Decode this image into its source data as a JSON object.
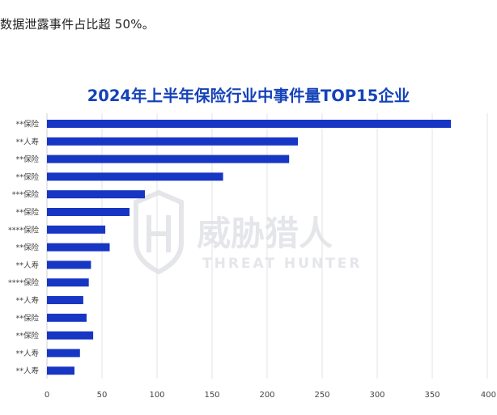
{
  "intro_text": "数据泄露事件占比超 50%。",
  "watermark": {
    "cn": "威胁猎人",
    "en": "THREAT HUNTER"
  },
  "colors": {
    "bar": "#1736c4",
    "title": "#1442b8",
    "grid": "#e3e3e3",
    "watermark": "#e4e6ea"
  },
  "chart_data": {
    "type": "bar",
    "orientation": "horizontal",
    "title": "2024年上半年保险行业中事件量TOP15企业",
    "xlabel": "",
    "ylabel": "",
    "xlim": [
      0,
      400
    ],
    "x_ticks": [
      0,
      50,
      100,
      150,
      200,
      250,
      300,
      350,
      400
    ],
    "grid": true,
    "categories": [
      "**保险",
      "**人寿",
      "**保险",
      "**保险",
      "***保险",
      "**保险",
      "****保险",
      "**保险",
      "**人寿",
      "****保险",
      "**人寿",
      "**保险",
      "**保险",
      "**人寿",
      "**人寿"
    ],
    "values": [
      367,
      228,
      220,
      160,
      89,
      75,
      53,
      57,
      40,
      38,
      33,
      36,
      42,
      30,
      25
    ]
  }
}
